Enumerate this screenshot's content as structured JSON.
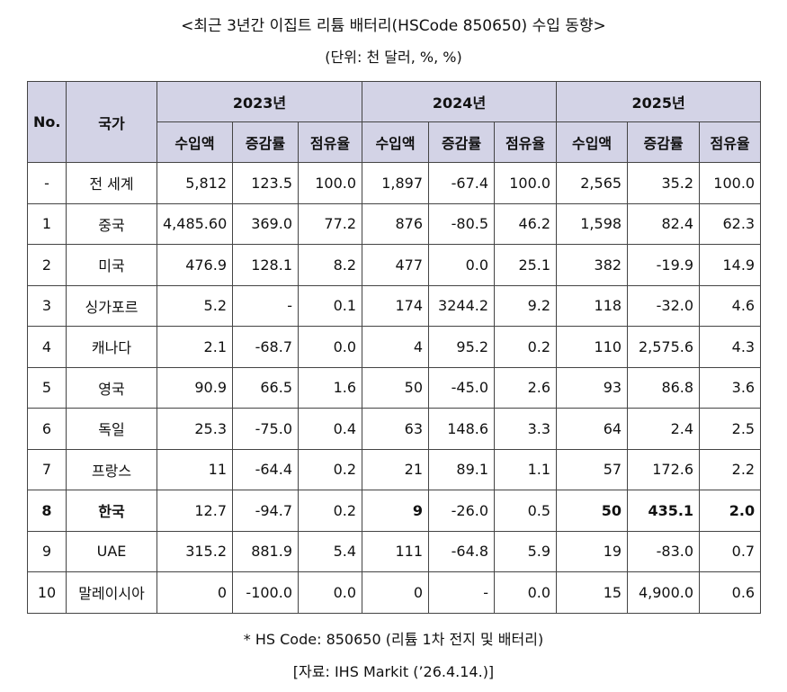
{
  "title": "<최근 3년간 이집트 리튬 배터리(HSCode 850650) 수입 동향>",
  "unit": "(단위: 천 달러, %, %)",
  "headers": {
    "no": "No.",
    "country": "국가",
    "years": [
      "2023년",
      "2024년",
      "2025년"
    ],
    "sub": [
      "수입액",
      "증감률",
      "점유율"
    ]
  },
  "rows": [
    {
      "no": "-",
      "country": "전 세계",
      "v": [
        "5,812",
        "123.5",
        "100.0",
        "1,897",
        "-67.4",
        "100.0",
        "2,565",
        "35.2",
        "100.0"
      ]
    },
    {
      "no": "1",
      "country": "중국",
      "v": [
        "4,485.60",
        "369.0",
        "77.2",
        "876",
        "-80.5",
        "46.2",
        "1,598",
        "82.4",
        "62.3"
      ]
    },
    {
      "no": "2",
      "country": "미국",
      "v": [
        "476.9",
        "128.1",
        "8.2",
        "477",
        "0.0",
        "25.1",
        "382",
        "-19.9",
        "14.9"
      ]
    },
    {
      "no": "3",
      "country": "싱가포르",
      "v": [
        "5.2",
        "-",
        "0.1",
        "174",
        "3244.2",
        "9.2",
        "118",
        "-32.0",
        "4.6"
      ]
    },
    {
      "no": "4",
      "country": "캐나다",
      "v": [
        "2.1",
        "-68.7",
        "0.0",
        "4",
        "95.2",
        "0.2",
        "110",
        "2,575.6",
        "4.3"
      ]
    },
    {
      "no": "5",
      "country": "영국",
      "v": [
        "90.9",
        "66.5",
        "1.6",
        "50",
        "-45.0",
        "2.6",
        "93",
        "86.8",
        "3.6"
      ]
    },
    {
      "no": "6",
      "country": "독일",
      "v": [
        "25.3",
        "-75.0",
        "0.4",
        "63",
        "148.6",
        "3.3",
        "64",
        "2.4",
        "2.5"
      ]
    },
    {
      "no": "7",
      "country": "프랑스",
      "v": [
        "11",
        "-64.4",
        "0.2",
        "21",
        "89.1",
        "1.1",
        "57",
        "172.6",
        "2.2"
      ]
    },
    {
      "no": "8",
      "country": "한국",
      "v": [
        "12.7",
        "-94.7",
        "0.2",
        "9",
        "-26.0",
        "0.5",
        "50",
        "435.1",
        "2.0"
      ]
    },
    {
      "no": "9",
      "country": "UAE",
      "v": [
        "315.2",
        "881.9",
        "5.4",
        "111",
        "-64.8",
        "5.9",
        "19",
        "-83.0",
        "0.7"
      ]
    },
    {
      "no": "10",
      "country": "말레이시아",
      "v": [
        "0",
        "-100.0",
        "0.0",
        "0",
        "-",
        "0.0",
        "15",
        "4,900.0",
        "0.6"
      ]
    }
  ],
  "highlight_row": "8",
  "header_bg": "#d3d3e6",
  "note": "* HS Code: 850650 (리튬 1차 전지 및 배터리)",
  "source": "[자료: IHS Markit (’26.4.14.)]"
}
